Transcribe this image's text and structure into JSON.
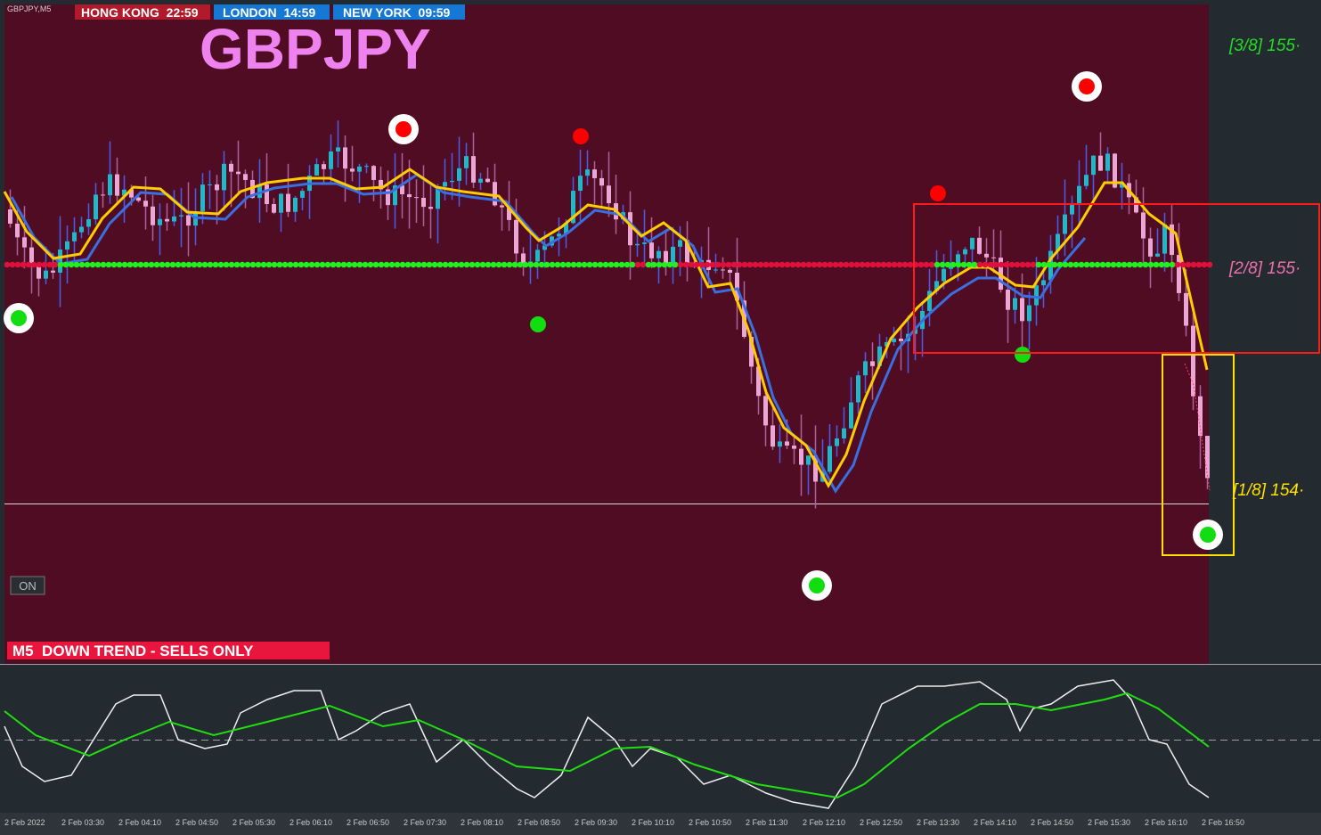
{
  "header": {
    "symbol": "GBPJPY,M5",
    "sessions": [
      "HONG KONG  22:59",
      "LONDON  14:59",
      "NEW YORK  09:59"
    ],
    "title": "GBPJPY"
  },
  "levels": [
    "[3/8] 155·",
    "[2/8] 155·",
    "[1/8] 154·"
  ],
  "button": "ON",
  "status": "M5  DOWN TREND - SELLS ONLY",
  "time_axis": [
    "2 Feb 2022",
    "2 Feb 03:30",
    "2 Feb 04:10",
    "2 Feb 04:50",
    "2 Feb 05:30",
    "2 Feb 06:10",
    "2 Feb 06:50",
    "2 Feb 07:30",
    "2 Feb 08:10",
    "2 Feb 08:50",
    "2 Feb 09:30",
    "2 Feb 10:10",
    "2 Feb 10:50",
    "2 Feb 11:30",
    "2 Feb 12:10",
    "2 Feb 12:50",
    "2 Feb 13:30",
    "2 Feb 14:10",
    "2 Feb 14:50",
    "2 Feb 15:30",
    "2 Feb 16:10",
    "2 Feb 16:50"
  ]
}
